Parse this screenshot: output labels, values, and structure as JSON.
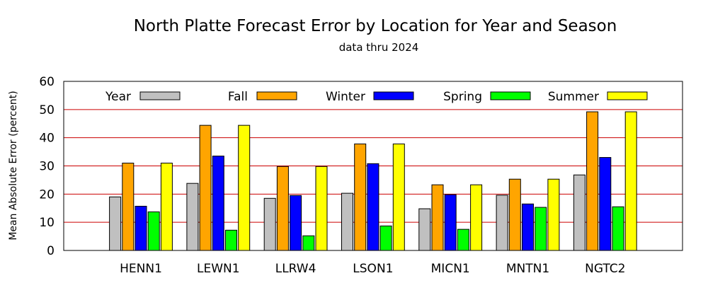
{
  "chart_data": {
    "type": "bar",
    "title": "North Platte Forecast Error by Location for Year and Season",
    "subtitle": "data thru 2024",
    "xlabel": "",
    "ylabel": "Mean Absolute Error (percent)",
    "ylim": [
      0,
      60
    ],
    "yticks": [
      0,
      10,
      20,
      30,
      40,
      50,
      60
    ],
    "grid": "horizontal",
    "legend_position": "top",
    "categories": [
      "HENN1",
      "LEWN1",
      "LLRW4",
      "LSON1",
      "MICN1",
      "MNTN1",
      "NGTC2"
    ],
    "series": [
      {
        "name": "Year",
        "color": "#c0c0c0",
        "values": [
          19.0,
          23.8,
          18.5,
          20.3,
          14.8,
          19.6,
          26.8
        ]
      },
      {
        "name": "Fall",
        "color": "#ffa500",
        "values": [
          31.0,
          44.4,
          29.8,
          37.8,
          23.3,
          25.3,
          49.2
        ]
      },
      {
        "name": "Winter",
        "color": "#0000ff",
        "values": [
          15.7,
          33.5,
          19.5,
          30.8,
          19.8,
          16.5,
          33.0
        ]
      },
      {
        "name": "Spring",
        "color": "#00ff00",
        "values": [
          13.7,
          7.2,
          5.2,
          8.7,
          7.5,
          15.3,
          15.5
        ]
      },
      {
        "name": "Summer",
        "color": "#ffff00",
        "values": [
          31.0,
          44.4,
          29.8,
          37.8,
          23.3,
          25.3,
          49.2
        ]
      }
    ],
    "gridline_color": "#cc0000"
  }
}
